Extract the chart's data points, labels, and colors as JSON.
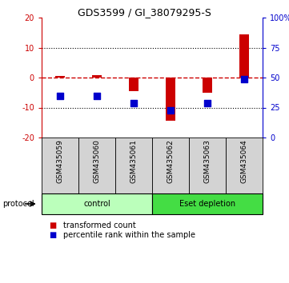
{
  "title": "GDS3599 / GI_38079295-S",
  "categories": [
    "GSM435059",
    "GSM435060",
    "GSM435061",
    "GSM435062",
    "GSM435063",
    "GSM435064"
  ],
  "red_values": [
    0.5,
    0.8,
    -4.5,
    -14.5,
    -5.0,
    14.5
  ],
  "blue_values": [
    -6.0,
    -6.2,
    -8.5,
    -11.0,
    -8.5,
    -0.5
  ],
  "ylim_left": [
    -20,
    20
  ],
  "ylim_right": [
    0,
    100
  ],
  "yticks_left": [
    -20,
    -10,
    0,
    10,
    20
  ],
  "yticks_right": [
    0,
    25,
    50,
    75,
    100
  ],
  "ytick_labels_left": [
    "-20",
    "-10",
    "0",
    "10",
    "20"
  ],
  "ytick_labels_right": [
    "0",
    "25",
    "50",
    "75",
    "100%"
  ],
  "left_tick_color": "#cc0000",
  "right_tick_color": "#0000cc",
  "dotted_lines": [
    -10,
    10
  ],
  "red_color": "#cc0000",
  "blue_color": "#0000cc",
  "blue_square_size": 40,
  "control_color": "#bbffbb",
  "eset_color": "#44dd44",
  "protocol_label": "protocol",
  "legend_red": "transformed count",
  "legend_blue": "percentile rank within the sample",
  "background_color": "#ffffff",
  "plot_bg_color": "#ffffff",
  "header_bg": "#d3d3d3",
  "fig_width": 3.61,
  "fig_height": 3.54,
  "dpi": 100
}
